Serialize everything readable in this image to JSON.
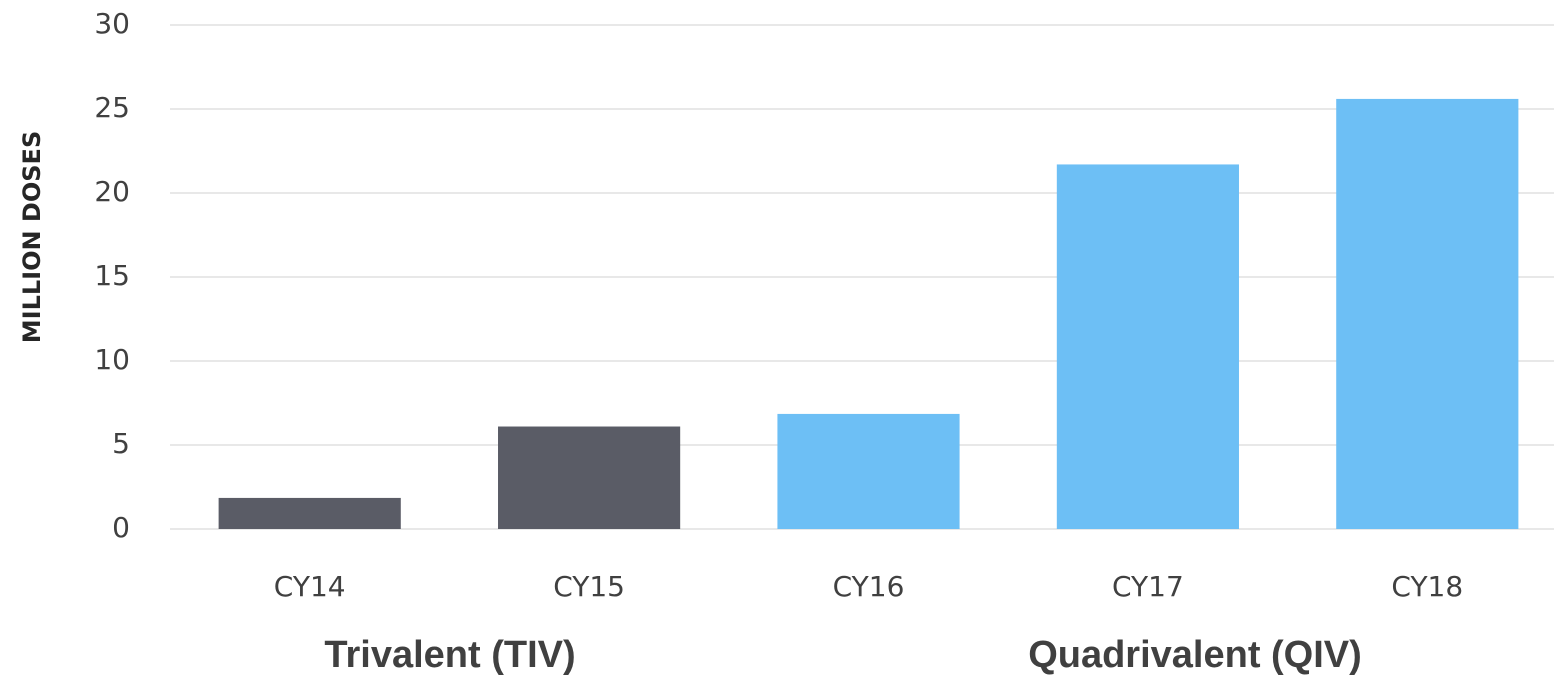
{
  "chart_data": {
    "type": "bar",
    "y_label": "MILLION DOSES",
    "categories": [
      "CY14",
      "CY15",
      "CY16",
      "CY17",
      "CY18"
    ],
    "values": [
      1.85,
      6.1,
      6.85,
      21.7,
      25.6
    ],
    "colors": [
      "#5a5c66",
      "#5a5c66",
      "#6dbff5",
      "#6dbff5",
      "#6dbff5"
    ],
    "annotations": [
      "Trivalent (TIV)",
      "Quadrivalent (QIV)"
    ],
    "ylim": [
      0,
      30
    ],
    "yticks": [
      0,
      5,
      10,
      15,
      20,
      25,
      30
    ],
    "grid": true
  }
}
